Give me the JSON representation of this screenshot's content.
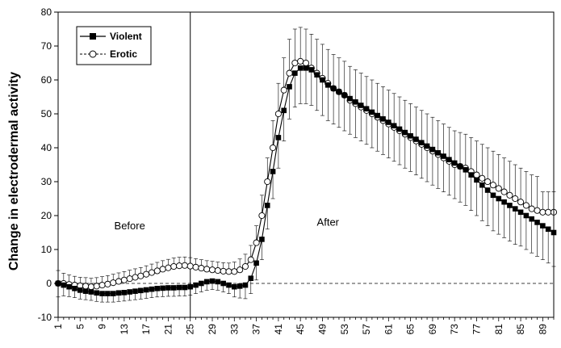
{
  "chart_data": {
    "type": "line",
    "title": "",
    "xlabel": "",
    "ylabel": "Change in electrodermal activity",
    "xlim": [
      1,
      91
    ],
    "ylim": [
      -10,
      80
    ],
    "yticks": [
      -10,
      0,
      10,
      20,
      30,
      40,
      50,
      60,
      70,
      80
    ],
    "xticks": [
      1,
      5,
      9,
      13,
      17,
      21,
      25,
      29,
      33,
      37,
      41,
      45,
      49,
      53,
      57,
      61,
      65,
      69,
      73,
      77,
      81,
      85,
      89
    ],
    "divider_x": 25,
    "baseline_y": 0,
    "legend_position": "top-left",
    "annotations": [
      {
        "text": "Before",
        "x": 14,
        "y": 16
      },
      {
        "text": "After",
        "x": 50,
        "y": 17
      }
    ],
    "series": [
      {
        "name": "Violent",
        "marker": "filled-square",
        "values": [
          0,
          -0.5,
          -1,
          -1.5,
          -2,
          -2.3,
          -2.5,
          -2.8,
          -3,
          -3,
          -3,
          -2.8,
          -2.7,
          -2.5,
          -2.3,
          -2.1,
          -1.9,
          -1.7,
          -1.5,
          -1.4,
          -1.3,
          -1.3,
          -1.2,
          -1.2,
          -1,
          -0.5,
          0,
          0.5,
          0.7,
          0.5,
          0,
          -0.5,
          -1,
          -0.8,
          -0.5,
          1.5,
          6,
          13,
          23,
          33,
          43,
          51,
          58,
          62,
          63.5,
          63.5,
          63,
          61.5,
          60,
          58.5,
          57.5,
          56.5,
          55.5,
          54.5,
          53.5,
          52.5,
          51.5,
          50.5,
          49.5,
          48.5,
          47.5,
          46.5,
          45.5,
          44.5,
          43.5,
          42.5,
          41.5,
          40.5,
          39.5,
          38.5,
          37.5,
          36.5,
          35.5,
          34.5,
          33.5,
          32,
          30.5,
          29,
          27.5,
          26,
          25,
          24,
          23,
          22,
          21,
          20,
          19,
          18,
          17,
          16,
          15
        ],
        "error": [
          4,
          3.2,
          2.9,
          2.7,
          2.6,
          2.5,
          2.5,
          2.5,
          2.5,
          2.5,
          2.5,
          2.5,
          2.5,
          2.5,
          2.5,
          2.5,
          2.5,
          2.5,
          2.5,
          2.5,
          2.5,
          2.5,
          2.5,
          2.5,
          2.5,
          2.5,
          2.5,
          2.5,
          2.5,
          2.5,
          2.5,
          2.5,
          3,
          3.5,
          4,
          4.5,
          5,
          6,
          7,
          8,
          9,
          9,
          9.5,
          10,
          10.5,
          10.5,
          10.5,
          10.5,
          10.5,
          10.5,
          10.5,
          10.5,
          10.5,
          10.5,
          10.5,
          10.5,
          10.5,
          10.5,
          10.5,
          10.5,
          10.5,
          10.5,
          10.5,
          10.5,
          10.5,
          10.5,
          10.5,
          10.5,
          10.5,
          10.5,
          10.5,
          10.5,
          10.5,
          10.5,
          10.5,
          10.5,
          10.5,
          10.5,
          10.5,
          10.5,
          10.5,
          10.5,
          10.5,
          10.5,
          10,
          10,
          10,
          10,
          10,
          10,
          10
        ]
      },
      {
        "name": "Erotic",
        "marker": "open-circle",
        "values": [
          0,
          0,
          -0.3,
          -0.5,
          -0.7,
          -0.8,
          -1,
          -0.8,
          -0.5,
          -0.2,
          0.2,
          0.6,
          1,
          1.4,
          1.8,
          2.2,
          2.7,
          3.2,
          3.7,
          4.2,
          4.6,
          5,
          5.2,
          5.3,
          5.1,
          4.8,
          4.5,
          4.2,
          4,
          3.8,
          3.6,
          3.5,
          3.5,
          4,
          5,
          7,
          12,
          20,
          30,
          40,
          50,
          57,
          62,
          65,
          65.5,
          65,
          63.5,
          62,
          60.5,
          59,
          57.5,
          56.5,
          55.5,
          54,
          53,
          52,
          51,
          50,
          49,
          48,
          47,
          46,
          45,
          44,
          43,
          42,
          41,
          40,
          39,
          38,
          37,
          36,
          35,
          34.5,
          34,
          33,
          32,
          31,
          30,
          29,
          28,
          27,
          26,
          25,
          24,
          23,
          22,
          21.5,
          21,
          21,
          21
        ],
        "error": [
          3.8,
          3,
          2.8,
          2.6,
          2.5,
          2.5,
          2.5,
          2.5,
          2.5,
          2.5,
          2.5,
          2.5,
          2.5,
          2.5,
          2.5,
          2.5,
          2.5,
          2.5,
          2.5,
          2.5,
          2.5,
          2.5,
          2.5,
          2.5,
          2.5,
          2.5,
          2.5,
          2.5,
          2.5,
          2.5,
          2.5,
          2.5,
          2.8,
          3.2,
          3.6,
          4.2,
          5,
          6,
          7,
          8,
          9,
          9.5,
          10,
          10,
          10,
          10,
          10,
          10,
          10,
          10,
          10,
          10,
          10,
          10,
          10,
          10,
          10,
          10,
          10,
          10,
          10,
          10,
          10,
          10,
          10,
          10,
          10,
          10,
          10,
          10,
          10,
          10,
          10,
          10,
          10,
          10,
          10,
          10,
          10,
          10,
          10,
          10,
          10,
          10,
          10,
          10,
          10,
          10,
          6,
          6,
          6
        ]
      }
    ]
  }
}
